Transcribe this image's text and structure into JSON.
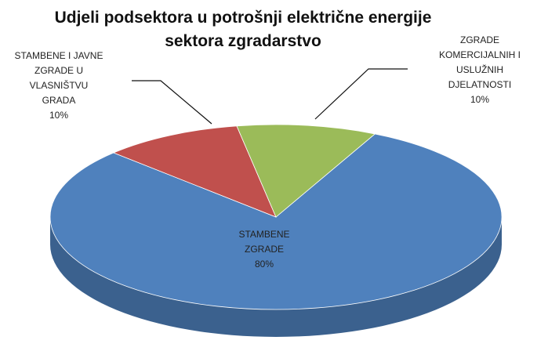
{
  "chart_data": {
    "type": "pie3d",
    "title": "Udjeli podsektora u potrošnji električne energije sektora zgradarstvo",
    "categories": [
      "STAMBENE ZGRADE",
      "STAMBENE I JAVNE ZGRADE U VLASNIŠTVU GRADA",
      "ZGRADE KOMERCIJALNIH I USLUŽNIH DJELATNOSTI"
    ],
    "values": [
      80,
      10,
      10
    ],
    "value_labels": [
      "80%",
      "10%",
      "10%"
    ],
    "colors": [
      "#4f81bd",
      "#c0504d",
      "#9bbb59"
    ]
  }
}
